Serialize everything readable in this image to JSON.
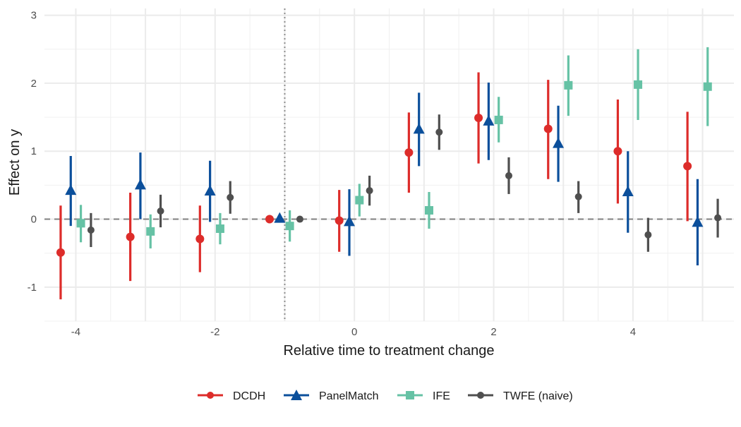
{
  "chart_data": {
    "type": "scatter",
    "title": "",
    "xlabel": "Relative time to treatment change",
    "ylabel": "Effect on y",
    "xlim": [
      -4.45,
      5.45
    ],
    "ylim": [
      -1.5,
      3.1
    ],
    "x_ticks": [
      -4,
      -2,
      0,
      2,
      4
    ],
    "x_tick_labels": [
      "-4",
      "-2",
      "0",
      "2",
      "4"
    ],
    "y_ticks": [
      -1,
      0,
      1,
      2,
      3
    ],
    "y_tick_labels": [
      "-1",
      "0",
      "1",
      "2",
      "3"
    ],
    "grid": true,
    "reference_lines": {
      "horizontal_y": 0,
      "vertical_x": -1
    },
    "legend_position": "bottom",
    "series": [
      {
        "name": "DCDH",
        "color": "#dd2c2a",
        "marker": "circle",
        "points": [
          {
            "x": -4,
            "y": -0.49,
            "lo": -1.18,
            "hi": 0.2
          },
          {
            "x": -3,
            "y": -0.26,
            "lo": -0.91,
            "hi": 0.39
          },
          {
            "x": -2,
            "y": -0.29,
            "lo": -0.78,
            "hi": 0.2
          },
          {
            "x": -1,
            "y": 0.0,
            "lo": 0.0,
            "hi": 0.0
          },
          {
            "x": 0,
            "y": -0.02,
            "lo": -0.48,
            "hi": 0.43
          },
          {
            "x": 1,
            "y": 0.98,
            "lo": 0.39,
            "hi": 1.57
          },
          {
            "x": 2,
            "y": 1.49,
            "lo": 0.82,
            "hi": 2.16
          },
          {
            "x": 3,
            "y": 1.33,
            "lo": 0.59,
            "hi": 2.05
          },
          {
            "x": 4,
            "y": 1.0,
            "lo": 0.23,
            "hi": 1.76
          },
          {
            "x": 5,
            "y": 0.78,
            "lo": -0.03,
            "hi": 1.58
          }
        ]
      },
      {
        "name": "PanelMatch",
        "color": "#0b4f9b",
        "marker": "triangle",
        "points": [
          {
            "x": -4,
            "y": 0.42,
            "lo": -0.1,
            "hi": 0.93
          },
          {
            "x": -3,
            "y": 0.5,
            "lo": 0.0,
            "hi": 0.98
          },
          {
            "x": -2,
            "y": 0.41,
            "lo": -0.04,
            "hi": 0.86
          },
          {
            "x": -1,
            "y": 0.01,
            "lo": 0.01,
            "hi": 0.01
          },
          {
            "x": 0,
            "y": -0.04,
            "lo": -0.54,
            "hi": 0.44
          },
          {
            "x": 1,
            "y": 1.32,
            "lo": 0.78,
            "hi": 1.86
          },
          {
            "x": 2,
            "y": 1.44,
            "lo": 0.87,
            "hi": 2.01
          },
          {
            "x": 3,
            "y": 1.11,
            "lo": 0.55,
            "hi": 1.67
          },
          {
            "x": 4,
            "y": 0.4,
            "lo": -0.2,
            "hi": 1.0
          },
          {
            "x": 5,
            "y": -0.05,
            "lo": -0.68,
            "hi": 0.59
          }
        ]
      },
      {
        "name": "IFE",
        "color": "#66c2a5",
        "marker": "square",
        "points": [
          {
            "x": -4,
            "y": -0.06,
            "lo": -0.34,
            "hi": 0.21
          },
          {
            "x": -3,
            "y": -0.18,
            "lo": -0.43,
            "hi": 0.07
          },
          {
            "x": -2,
            "y": -0.14,
            "lo": -0.37,
            "hi": 0.09
          },
          {
            "x": -1,
            "y": -0.1,
            "lo": -0.33,
            "hi": 0.13
          },
          {
            "x": 0,
            "y": 0.28,
            "lo": 0.04,
            "hi": 0.52
          },
          {
            "x": 1,
            "y": 0.13,
            "lo": -0.14,
            "hi": 0.4
          },
          {
            "x": 2,
            "y": 1.46,
            "lo": 1.13,
            "hi": 1.8
          },
          {
            "x": 3,
            "y": 1.97,
            "lo": 1.52,
            "hi": 2.41
          },
          {
            "x": 4,
            "y": 1.98,
            "lo": 1.46,
            "hi": 2.5
          },
          {
            "x": 5,
            "y": 1.95,
            "lo": 1.37,
            "hi": 2.53
          }
        ]
      },
      {
        "name": "TWFE (naive)",
        "color": "#4f4f4f",
        "marker": "circle-small",
        "points": [
          {
            "x": -4,
            "y": -0.16,
            "lo": -0.41,
            "hi": 0.09
          },
          {
            "x": -3,
            "y": 0.12,
            "lo": -0.12,
            "hi": 0.36
          },
          {
            "x": -2,
            "y": 0.32,
            "lo": 0.08,
            "hi": 0.56
          },
          {
            "x": -1,
            "y": 0.0,
            "lo": 0.0,
            "hi": 0.0
          },
          {
            "x": 0,
            "y": 0.42,
            "lo": 0.2,
            "hi": 0.64
          },
          {
            "x": 1,
            "y": 1.28,
            "lo": 1.02,
            "hi": 1.54
          },
          {
            "x": 2,
            "y": 0.64,
            "lo": 0.37,
            "hi": 0.91
          },
          {
            "x": 3,
            "y": 0.33,
            "lo": 0.09,
            "hi": 0.56
          },
          {
            "x": 4,
            "y": -0.23,
            "lo": -0.48,
            "hi": 0.02
          },
          {
            "x": 5,
            "y": 0.02,
            "lo": -0.27,
            "hi": 0.3
          }
        ]
      }
    ]
  }
}
